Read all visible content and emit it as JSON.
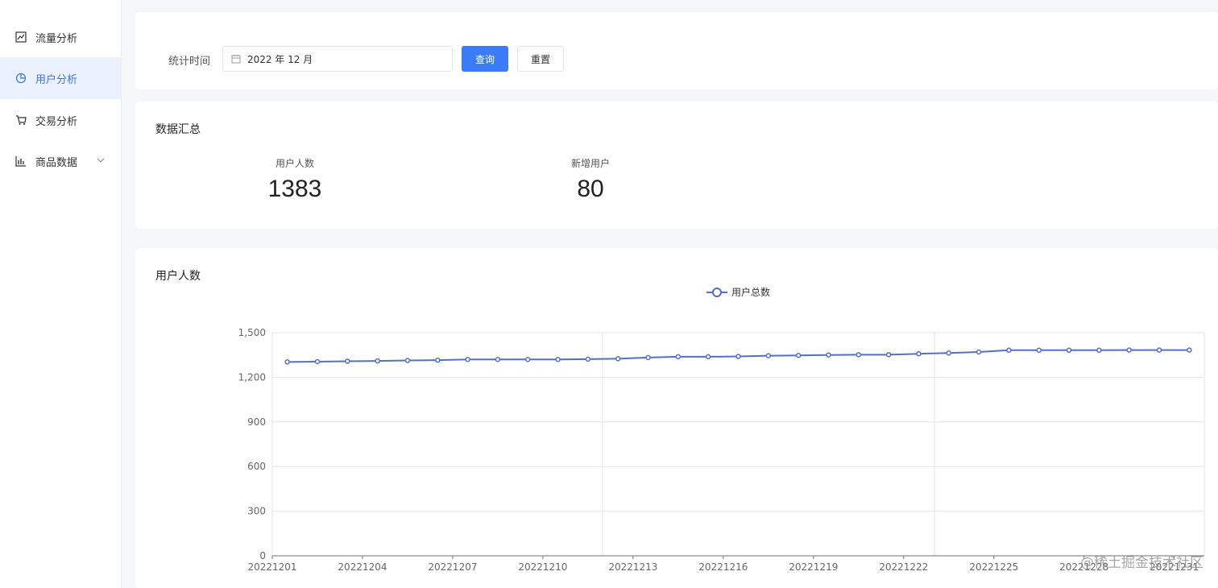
{
  "sidebar": {
    "items": [
      {
        "label": "流量分析",
        "icon": "line-chart-icon"
      },
      {
        "label": "用户分析",
        "icon": "pie-chart-icon"
      },
      {
        "label": "交易分析",
        "icon": "cart-icon"
      },
      {
        "label": "商品数据",
        "icon": "bar-chart-icon"
      }
    ]
  },
  "filter": {
    "label": "统计时间",
    "date_value": "2022 年 12 月",
    "query_label": "查询",
    "reset_label": "重置"
  },
  "summary": {
    "title": "数据汇总",
    "stats": [
      {
        "label": "用户人数",
        "value": "1383"
      },
      {
        "label": "新增用户",
        "value": "80"
      }
    ]
  },
  "chart_section": {
    "title": "用户人数"
  },
  "watermark": "@稀土掘金技术社区",
  "colors": {
    "accent": "#3b7bf6",
    "series": "#5470c6",
    "active_bg": "#ecf2fd"
  },
  "chart_data": {
    "type": "line",
    "legend": "用户总数",
    "legend_position": "top-center",
    "categories": [
      "20221201",
      "20221202",
      "20221203",
      "20221204",
      "20221205",
      "20221206",
      "20221207",
      "20221208",
      "20221209",
      "20221210",
      "20221211",
      "20221212",
      "20221213",
      "20221214",
      "20221215",
      "20221216",
      "20221217",
      "20221218",
      "20221219",
      "20221220",
      "20221221",
      "20221222",
      "20221223",
      "20221224",
      "20221225",
      "20221226",
      "20221227",
      "20221228",
      "20221229",
      "20221230",
      "20221231"
    ],
    "tick_labels": [
      "20221201",
      "20221204",
      "20221207",
      "20221210",
      "20221213",
      "20221216",
      "20221219",
      "20221222",
      "20221225",
      "20221228",
      "20221231"
    ],
    "series": [
      {
        "name": "用户总数",
        "values": [
          1303,
          1305,
          1308,
          1310,
          1313,
          1315,
          1320,
          1320,
          1320,
          1320,
          1322,
          1325,
          1333,
          1338,
          1338,
          1340,
          1345,
          1347,
          1350,
          1352,
          1352,
          1358,
          1363,
          1370,
          1382,
          1382,
          1382,
          1382,
          1383,
          1383,
          1383
        ]
      }
    ],
    "ylim": [
      0,
      1500
    ],
    "yticks": [
      "0",
      "300",
      "600",
      "900",
      "1,200",
      "1,500"
    ],
    "grid": true
  }
}
